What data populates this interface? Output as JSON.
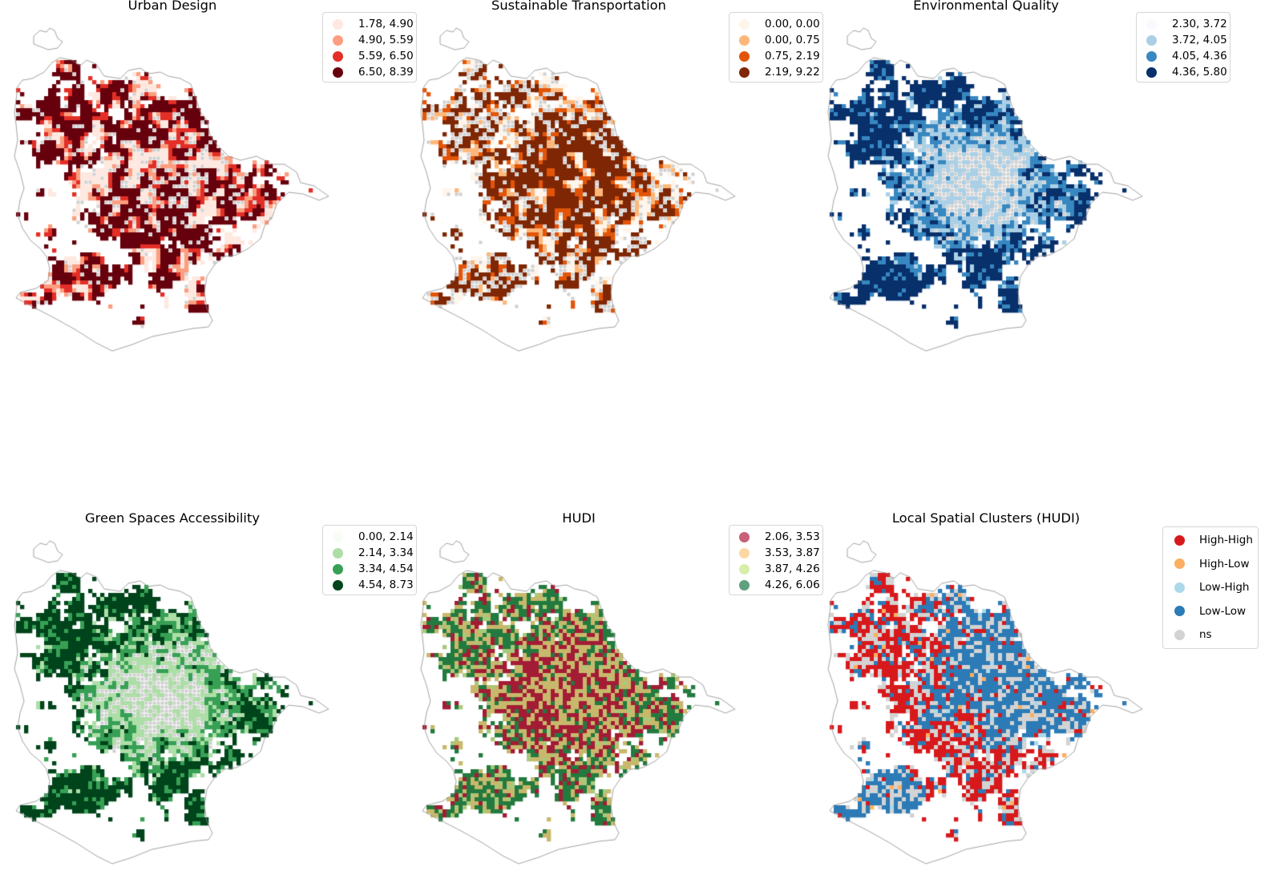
{
  "colors": {
    "boundary": "#8a8a8a",
    "hatch": "#cfcfcf"
  },
  "panels": [
    {
      "title": "Urban Design",
      "legend": [
        {
          "label": "1.78, 4.90",
          "color": "#fee8e0"
        },
        {
          "label": "4.90, 5.59",
          "color": "#fc9e80"
        },
        {
          "label": "5.59, 6.50",
          "color": "#e32f27"
        },
        {
          "label": "6.50, 8.39",
          "color": "#67000d"
        }
      ]
    },
    {
      "title": "Sustainable Transportation",
      "legend": [
        {
          "label": "0.00, 0.00",
          "color": "#fff5eb"
        },
        {
          "label": "0.00, 0.75",
          "color": "#fdb77a"
        },
        {
          "label": "0.75, 2.19",
          "color": "#e25508"
        },
        {
          "label": "2.19, 9.22",
          "color": "#7f2704"
        }
      ]
    },
    {
      "title": "Environmental Quality",
      "legend": [
        {
          "label": "2.30, 3.72",
          "color": "#f7fbff"
        },
        {
          "label": "3.72, 4.05",
          "color": "#abd0e6"
        },
        {
          "label": "4.05, 4.36",
          "color": "#3787c0"
        },
        {
          "label": "4.36, 5.80",
          "color": "#08306b"
        }
      ]
    },
    {
      "title": "Green Spaces Accessibility",
      "legend": [
        {
          "label": "0.00, 2.14",
          "color": "#f7fcf5"
        },
        {
          "label": "2.14, 3.34",
          "color": "#aedea7"
        },
        {
          "label": "3.34, 4.54",
          "color": "#37a055"
        },
        {
          "label": "4.54, 8.73",
          "color": "#00441b"
        }
      ]
    },
    {
      "title": "HUDI",
      "legend": [
        {
          "label": "2.06, 3.53",
          "color": "#c86078"
        },
        {
          "label": "3.53, 3.87",
          "color": "#fdd7a4"
        },
        {
          "label": "3.87, 4.26",
          "color": "#d8efaa"
        },
        {
          "label": "4.26, 6.06",
          "color": "#5fa07d"
        }
      ],
      "map_class_colors": [
        "#a31c35",
        "#c8b86c",
        "#a8c97a",
        "#237a3f"
      ]
    },
    {
      "title": "Local Spatial Clusters (HUDI)",
      "legend": [
        {
          "label": "High-High",
          "color": "#d7191c"
        },
        {
          "label": "High-Low",
          "color": "#fdae61"
        },
        {
          "label": "Low-High",
          "color": "#abd9e9"
        },
        {
          "label": "Low-Low",
          "color": "#2c7bb6"
        },
        {
          "label": "ns",
          "color": "#d3d3d3"
        }
      ]
    }
  ]
}
